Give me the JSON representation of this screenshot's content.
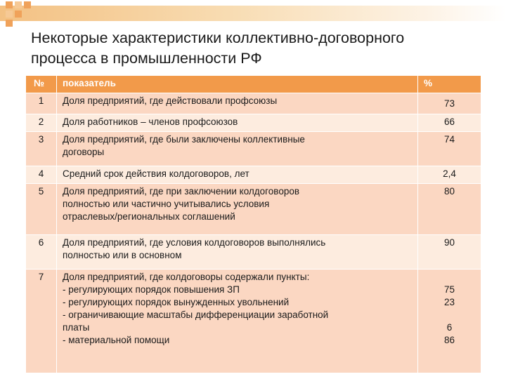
{
  "title": {
    "line1": "Некоторые характеристики коллективно-договорного",
    "line2": "процесса в промышленности РФ"
  },
  "table": {
    "headers": {
      "num": "№",
      "indicator": "показатель",
      "percent": "%"
    },
    "rows": [
      {
        "num": "1",
        "text": [
          "Доля предприятий, где действовали профсоюзы"
        ],
        "values": [
          "73"
        ]
      },
      {
        "num": "2",
        "text": [
          "Доля работников – членов профсоюзов"
        ],
        "values": [
          "66"
        ]
      },
      {
        "num": "3",
        "text": [
          "Доля предприятий, где были заключены коллективные",
          "договоры"
        ],
        "values": [
          "74"
        ]
      },
      {
        "num": "4",
        "text": [
          "Средний срок действия колдоговоров, лет"
        ],
        "values": [
          "2,4"
        ]
      },
      {
        "num": "5",
        "text": [
          "Доля предприятий, где при заключении колдоговоров",
          "полностью или частично учитывались условия",
          "отраслевых/региональных соглашений"
        ],
        "values": [
          "80"
        ]
      },
      {
        "num": "6",
        "text": [
          "Доля предприятий, где условия колдоговоров выполнялись",
          "полностью или в основном"
        ],
        "values": [
          "90"
        ]
      },
      {
        "num": "7",
        "text": [
          "Доля предприятий, где колдоговоры содержали пункты:",
          "- регулирующих порядок повышения ЗП",
          "- регулирующих порядок вынужденных увольнений",
          "-  ограничивающие масштабы дифференциации заработной",
          "платы",
          "- материальной помощи"
        ],
        "values": [
          "",
          "75",
          "23",
          "",
          "6",
          "86"
        ]
      }
    ]
  },
  "colors": {
    "header": "#f29a4a",
    "row_odd": "#fbd7c2",
    "row_even": "#fdecdf",
    "accent_bar": "#f3c183",
    "square_dark": "#f0a25a",
    "square_light": "#f6c995"
  }
}
